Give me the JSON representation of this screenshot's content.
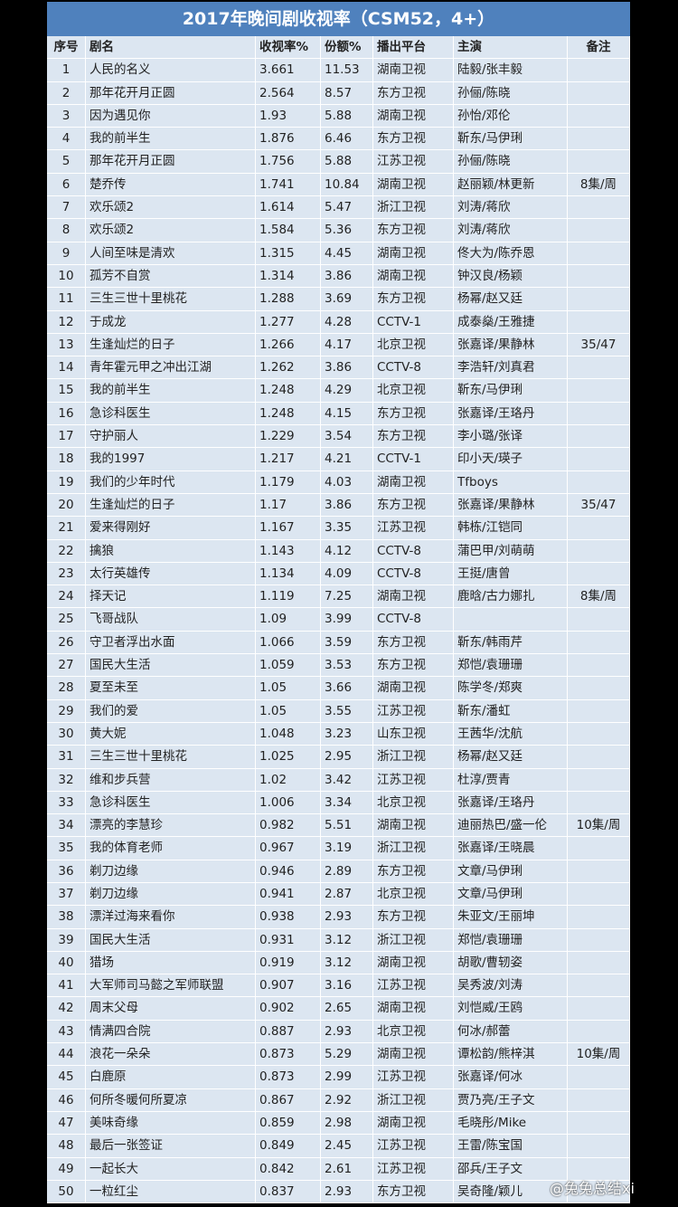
{
  "table": {
    "title": "2017年晚间剧收视率（CSM52，4+）",
    "header": [
      "序号",
      "剧名",
      "收视率%",
      "份额%",
      "播出平台",
      "主演",
      "备注"
    ],
    "rows": [
      {
        "no": "1",
        "name": "人民的名义",
        "rating": "3.661",
        "share": "11.53",
        "platform": "湖南卫视",
        "cast": "陆毅/张丰毅"
      },
      {
        "no": "2",
        "name": "那年花开月正圆",
        "rating": "2.564",
        "share": "8.57",
        "platform": "东方卫视",
        "cast": "孙俪/陈晓"
      },
      {
        "no": "3",
        "name": "因为遇见你",
        "rating": "1.93",
        "share": "5.88",
        "platform": "湖南卫视",
        "cast": "孙怡/邓伦"
      },
      {
        "no": "4",
        "name": "我的前半生",
        "rating": "1.876",
        "share": "6.46",
        "platform": "东方卫视",
        "cast": "靳东/马伊琍"
      },
      {
        "no": "5",
        "name": "那年花开月正圆",
        "rating": "1.756",
        "share": "5.88",
        "platform": "江苏卫视",
        "cast": "孙俪/陈晓"
      },
      {
        "no": "6",
        "name": "楚乔传",
        "rating": "1.741",
        "share": "10.84",
        "platform": "湖南卫视",
        "cast": "赵丽颖/林更新",
        "note": "8集/周"
      },
      {
        "no": "7",
        "name": "欢乐颂2",
        "rating": "1.614",
        "share": "5.47",
        "platform": "浙江卫视",
        "cast": "刘涛/蒋欣"
      },
      {
        "no": "8",
        "name": "欢乐颂2",
        "rating": "1.584",
        "share": "5.36",
        "platform": "东方卫视",
        "cast": "刘涛/蒋欣"
      },
      {
        "no": "9",
        "name": "人间至味是清欢",
        "rating": "1.315",
        "share": "4.45",
        "platform": "湖南卫视",
        "cast": "佟大为/陈乔恩"
      },
      {
        "no": "10",
        "name": "孤芳不自赏",
        "rating": "1.314",
        "share": "3.86",
        "platform": "湖南卫视",
        "cast": "钟汉良/杨颖"
      },
      {
        "no": "11",
        "name": "三生三世十里桃花",
        "rating": "1.288",
        "share": "3.69",
        "platform": "东方卫视",
        "cast": "杨幂/赵又廷"
      },
      {
        "no": "12",
        "name": "于成龙",
        "rating": "1.277",
        "share": "4.28",
        "platform": "CCTV-1",
        "cast": "成泰燊/王雅捷"
      },
      {
        "no": "13",
        "name": "生逢灿烂的日子",
        "rating": "1.266",
        "share": "4.17",
        "platform": "北京卫视",
        "cast": "张嘉译/果静林",
        "note": "35/47"
      },
      {
        "no": "14",
        "name": "青年霍元甲之冲出江湖",
        "rating": "1.262",
        "share": "3.86",
        "platform": "CCTV-8",
        "cast": "李浩轩/刘真君"
      },
      {
        "no": "15",
        "name": "我的前半生",
        "rating": "1.248",
        "share": "4.29",
        "platform": "北京卫视",
        "cast": "靳东/马伊琍"
      },
      {
        "no": "16",
        "name": "急诊科医生",
        "rating": "1.248",
        "share": "4.15",
        "platform": "东方卫视",
        "cast": "张嘉译/王珞丹"
      },
      {
        "no": "17",
        "name": "守护丽人",
        "rating": "1.229",
        "share": "3.54",
        "platform": "东方卫视",
        "cast": "李小璐/张译"
      },
      {
        "no": "18",
        "name": "我的1997",
        "rating": "1.217",
        "share": "4.21",
        "platform": "CCTV-1",
        "cast": "印小天/瑛子"
      },
      {
        "no": "19",
        "name": "我们的少年时代",
        "rating": "1.179",
        "share": "4.03",
        "platform": "湖南卫视",
        "cast": "Tfboys"
      },
      {
        "no": "20",
        "name": "生逢灿烂的日子",
        "rating": "1.17",
        "share": "3.86",
        "platform": "东方卫视",
        "cast": "张嘉译/果静林",
        "note": "35/47"
      },
      {
        "no": "21",
        "name": "爱来得刚好",
        "rating": "1.167",
        "share": "3.35",
        "platform": "江苏卫视",
        "cast": "韩栋/江铠同"
      },
      {
        "no": "22",
        "name": "擒狼",
        "rating": "1.143",
        "share": "4.12",
        "platform": "CCTV-8",
        "cast": "蒲巴甲/刘萌萌"
      },
      {
        "no": "23",
        "name": "太行英雄传",
        "rating": "1.134",
        "share": "4.09",
        "platform": "CCTV-8",
        "cast": "王挺/唐曾"
      },
      {
        "no": "24",
        "name": "择天记",
        "rating": "1.119",
        "share": "7.25",
        "platform": "湖南卫视",
        "cast": "鹿晗/古力娜扎",
        "note": "8集/周"
      },
      {
        "no": "25",
        "name": "飞哥战队",
        "rating": "1.09",
        "share": "3.99",
        "platform": "CCTV-8"
      },
      {
        "no": "26",
        "name": "守卫者浮出水面",
        "rating": "1.066",
        "share": "3.59",
        "platform": "东方卫视",
        "cast": "靳东/韩雨芹"
      },
      {
        "no": "27",
        "name": "国民大生活",
        "rating": "1.059",
        "share": "3.53",
        "platform": "东方卫视",
        "cast": "郑恺/袁珊珊"
      },
      {
        "no": "28",
        "name": "夏至未至",
        "rating": "1.05",
        "share": "3.66",
        "platform": "湖南卫视",
        "cast": "陈学冬/郑爽"
      },
      {
        "no": "29",
        "name": "我们的爱",
        "rating": "1.05",
        "share": "3.55",
        "platform": "江苏卫视",
        "cast": "靳东/潘虹"
      },
      {
        "no": "30",
        "name": "黄大妮",
        "rating": "1.048",
        "share": "3.23",
        "platform": "山东卫视",
        "cast": "王茜华/沈航"
      },
      {
        "no": "31",
        "name": "三生三世十里桃花",
        "rating": "1.025",
        "share": "2.95",
        "platform": "浙江卫视",
        "cast": "杨幂/赵又廷"
      },
      {
        "no": "32",
        "name": "维和步兵营",
        "rating": "1.02",
        "share": "3.42",
        "platform": "江苏卫视",
        "cast": "杜淳/贾青"
      },
      {
        "no": "33",
        "name": "急诊科医生",
        "rating": "1.006",
        "share": "3.34",
        "platform": "北京卫视",
        "cast": "张嘉译/王珞丹"
      },
      {
        "no": "34",
        "name": "漂亮的李慧珍",
        "rating": "0.982",
        "share": "5.51",
        "platform": "湖南卫视",
        "cast": "迪丽热巴/盛一伦",
        "note": "10集/周"
      },
      {
        "no": "35",
        "name": "我的体育老师",
        "rating": "0.967",
        "share": "3.19",
        "platform": "浙江卫视",
        "cast": "张嘉译/王晓晨"
      },
      {
        "no": "36",
        "name": "剃刀边缘",
        "rating": "0.946",
        "share": "2.89",
        "platform": "东方卫视",
        "cast": "文章/马伊琍"
      },
      {
        "no": "37",
        "name": "剃刀边缘",
        "rating": "0.941",
        "share": "2.87",
        "platform": "北京卫视",
        "cast": "文章/马伊琍"
      },
      {
        "no": "38",
        "name": "漂洋过海来看你",
        "rating": "0.938",
        "share": "2.93",
        "platform": "东方卫视",
        "cast": "朱亚文/王丽坤"
      },
      {
        "no": "39",
        "name": "国民大生活",
        "rating": "0.931",
        "share": "3.12",
        "platform": "浙江卫视",
        "cast": "郑恺/袁珊珊"
      },
      {
        "no": "40",
        "name": "猎场",
        "rating": "0.919",
        "share": "3.12",
        "platform": "湖南卫视",
        "cast": "胡歌/曹轫姿"
      },
      {
        "no": "41",
        "name": "大军师司马懿之军师联盟",
        "rating": "0.907",
        "share": "3.16",
        "platform": "江苏卫视",
        "cast": "吴秀波/刘涛"
      },
      {
        "no": "42",
        "name": "周末父母",
        "rating": "0.902",
        "share": "2.65",
        "platform": "湖南卫视",
        "cast": "刘恺威/王鸥"
      },
      {
        "no": "43",
        "name": "情满四合院",
        "rating": "0.887",
        "share": "2.93",
        "platform": "北京卫视",
        "cast": "何冰/郝蕾"
      },
      {
        "no": "44",
        "name": "浪花一朵朵",
        "rating": "0.873",
        "share": "5.29",
        "platform": "湖南卫视",
        "cast": "谭松韵/熊梓淇",
        "note": "10集/周"
      },
      {
        "no": "45",
        "name": "白鹿原",
        "rating": "0.873",
        "share": "2.99",
        "platform": "江苏卫视",
        "cast": "张嘉译/何冰"
      },
      {
        "no": "46",
        "name": "何所冬暖何所夏凉",
        "rating": "0.867",
        "share": "2.92",
        "platform": "浙江卫视",
        "cast": "贾乃亮/王子文"
      },
      {
        "no": "47",
        "name": "美味奇缘",
        "rating": "0.859",
        "share": "2.98",
        "platform": "湖南卫视",
        "cast": "毛晓彤/Mike"
      },
      {
        "no": "48",
        "name": "最后一张签证",
        "rating": "0.849",
        "share": "2.45",
        "platform": "江苏卫视",
        "cast": "王雷/陈宝国"
      },
      {
        "no": "49",
        "name": "一起长大",
        "rating": "0.842",
        "share": "2.61",
        "platform": "江苏卫视",
        "cast": "邵兵/王子文"
      },
      {
        "no": "50",
        "name": "一粒红尘",
        "rating": "0.837",
        "share": "2.93",
        "platform": "东方卫视",
        "cast": "吴奇隆/颖儿"
      }
    ]
  },
  "watermark": "@兔兔总结xi"
}
